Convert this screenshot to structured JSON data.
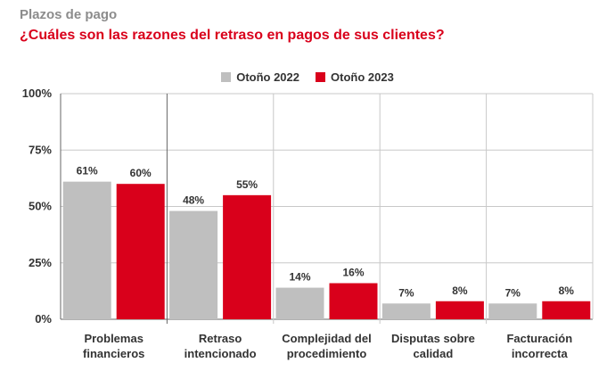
{
  "kicker": "Plazos de pago",
  "title": "¿Cuáles son las razones del retraso en pagos de sus clientes?",
  "colors": {
    "series1": "#bfbfbf",
    "series2": "#d9001b",
    "grid": "#c8c8c8",
    "axis": "#666666"
  },
  "chart_data": {
    "type": "bar",
    "title": "¿Cuáles son las razones del retraso en pagos de sus clientes?",
    "xlabel": "",
    "ylabel": "",
    "ylim": [
      0,
      100
    ],
    "yticks": [
      "0%",
      "25%",
      "50%",
      "75%",
      "100%"
    ],
    "ytick_values": [
      0,
      25,
      50,
      75,
      100
    ],
    "grid": true,
    "legend_position": "top-center",
    "categories": [
      [
        "Problemas",
        "financieros"
      ],
      [
        "Retraso",
        "intencionado"
      ],
      [
        "Complejidad del",
        "procedimiento"
      ],
      [
        "Disputas sobre",
        "calidad"
      ],
      [
        "Facturación",
        "incorrecta"
      ]
    ],
    "series": [
      {
        "name": "Otoño 2022",
        "values": [
          61,
          48,
          14,
          7,
          7
        ],
        "labels": [
          "61%",
          "48%",
          "14%",
          "7%",
          "7%"
        ]
      },
      {
        "name": "Otoño 2023",
        "values": [
          60,
          55,
          16,
          8,
          8
        ],
        "labels": [
          "60%",
          "55%",
          "16%",
          "8%",
          "8%"
        ]
      }
    ]
  }
}
